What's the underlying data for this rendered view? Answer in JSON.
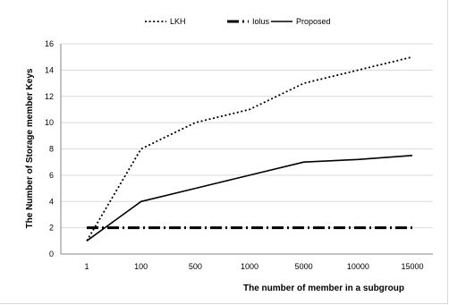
{
  "chart_data": {
    "type": "line",
    "title": "",
    "xlabel": "The number of member  in a subgroup",
    "ylabel": "The Number of Storage member Keys",
    "categories": [
      "1",
      "100",
      "500",
      "1000",
      "5000",
      "10000",
      "15000"
    ],
    "ylim": [
      0,
      16
    ],
    "yticks": [
      "0",
      "2",
      "4",
      "6",
      "8",
      "10",
      "12",
      "14",
      "16"
    ],
    "grid": "horizontal",
    "legend_position": "top",
    "series": [
      {
        "name": "LKH",
        "style": "dotted",
        "color": "#000000",
        "values": [
          1,
          8,
          10,
          11,
          13,
          14,
          15
        ]
      },
      {
        "name": "Iolus",
        "style": "dash-dot",
        "color": "#000000",
        "values": [
          2,
          2,
          2,
          2,
          2,
          2,
          2
        ]
      },
      {
        "name": "Proposed",
        "style": "solid",
        "color": "#000000",
        "values": [
          1,
          4,
          5,
          6,
          7,
          7.2,
          7.5
        ]
      }
    ]
  }
}
